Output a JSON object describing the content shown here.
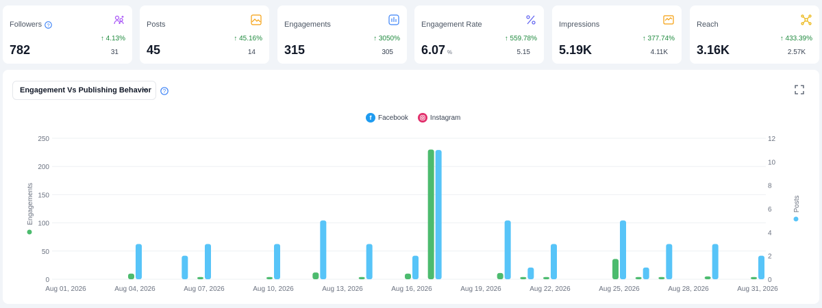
{
  "cards": [
    {
      "title": "Followers",
      "value": "782",
      "unit": "",
      "change": "↑ 4.13%",
      "previous": "31",
      "icon": "followers-icon",
      "icon_color": "#a855f7",
      "has_help": true
    },
    {
      "title": "Posts",
      "value": "45",
      "unit": "",
      "change": "↑ 45.16%",
      "previous": "14",
      "icon": "posts-image-icon",
      "icon_color": "#f59e0b",
      "has_help": false
    },
    {
      "title": "Engagements",
      "value": "315",
      "unit": "",
      "change": "↑ 3050%",
      "previous": "305",
      "icon": "engagements-chart-icon",
      "icon_color": "#3b82f6",
      "has_help": false
    },
    {
      "title": "Engagement Rate",
      "value": "6.07",
      "unit": "%",
      "change": "↑ 559.78%",
      "previous": "5.15",
      "icon": "percent-icon",
      "icon_color": "#6366f1",
      "has_help": false
    },
    {
      "title": "Impressions",
      "value": "5.19K",
      "unit": "",
      "change": "↑ 377.74%",
      "previous": "4.11K",
      "icon": "impressions-icon",
      "icon_color": "#f59e0b",
      "has_help": false
    },
    {
      "title": "Reach",
      "value": "3.16K",
      "unit": "",
      "change": "↑ 433.39%",
      "previous": "2.57K",
      "icon": "reach-icon",
      "icon_color": "#eab308",
      "has_help": false
    }
  ],
  "chart_panel": {
    "dropdown_label": "Engagement Vs Publishing Behavior",
    "legend": [
      {
        "label": "Facebook",
        "icon": "facebook-icon",
        "color": "#1e9bf0"
      },
      {
        "label": "Instagram",
        "icon": "instagram-icon",
        "color": "#e1306c"
      }
    ]
  },
  "chart_data": {
    "type": "bar",
    "categories": [
      "Aug 01, 2026",
      "Aug 02, 2026",
      "Aug 03, 2026",
      "Aug 04, 2026",
      "Aug 05, 2026",
      "Aug 06, 2026",
      "Aug 07, 2026",
      "Aug 08, 2026",
      "Aug 09, 2026",
      "Aug 10, 2026",
      "Aug 11, 2026",
      "Aug 12, 2026",
      "Aug 13, 2026",
      "Aug 14, 2026",
      "Aug 15, 2026",
      "Aug 16, 2026",
      "Aug 17, 2026",
      "Aug 18, 2026",
      "Aug 19, 2026",
      "Aug 20, 2026",
      "Aug 21, 2026",
      "Aug 22, 2026",
      "Aug 23, 2026",
      "Aug 24, 2026",
      "Aug 25, 2026",
      "Aug 26, 2026",
      "Aug 27, 2026",
      "Aug 28, 2026",
      "Aug 29, 2026",
      "Aug 30, 2026",
      "Aug 31, 2026"
    ],
    "x_tick_labels": [
      "Aug 01, 2026",
      "Aug 04, 2026",
      "Aug 07, 2026",
      "Aug 10, 2026",
      "Aug 13, 2026",
      "Aug 16, 2026",
      "Aug 19, 2026",
      "Aug 22, 2026",
      "Aug 25, 2026",
      "Aug 28, 2026",
      "Aug 31, 2026"
    ],
    "series": [
      {
        "name": "Engagements",
        "axis": "left",
        "color": "#4cbb6e",
        "values": [
          0,
          0,
          0,
          10,
          0,
          0,
          4,
          0,
          0,
          4,
          0,
          12,
          0,
          4,
          0,
          10,
          230,
          0,
          0,
          11,
          4,
          4,
          0,
          0,
          36,
          4,
          4,
          0,
          5,
          0,
          4
        ]
      },
      {
        "name": "Posts",
        "axis": "right",
        "color": "#57c4f8",
        "values": [
          0,
          0,
          0,
          3,
          0,
          2,
          3,
          0,
          0,
          3,
          0,
          5,
          0,
          3,
          0,
          2,
          11,
          0,
          0,
          5,
          1,
          3,
          0,
          0,
          5,
          1,
          3,
          0,
          3,
          0,
          2
        ]
      }
    ],
    "ylabel": "Engagements",
    "y2label": "Posts",
    "ylim": [
      0,
      250
    ],
    "yticks": [
      0,
      50,
      100,
      150,
      200,
      250
    ],
    "y2lim": [
      0,
      12
    ],
    "y2ticks": [
      0,
      2,
      4,
      6,
      8,
      10,
      12
    ],
    "grid": true
  }
}
